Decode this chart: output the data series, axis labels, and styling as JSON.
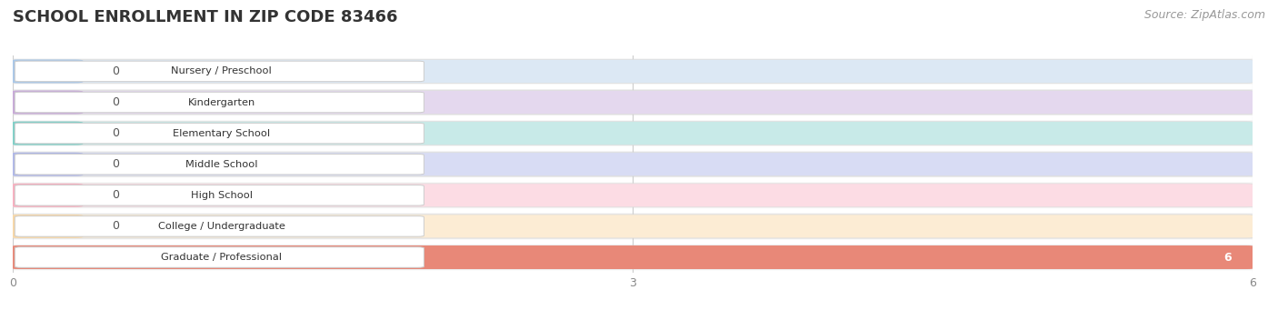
{
  "title": "SCHOOL ENROLLMENT IN ZIP CODE 83466",
  "source": "Source: ZipAtlas.com",
  "categories": [
    "Nursery / Preschool",
    "Kindergarten",
    "Elementary School",
    "Middle School",
    "High School",
    "College / Undergraduate",
    "Graduate / Professional"
  ],
  "values": [
    0,
    0,
    0,
    0,
    0,
    0,
    6
  ],
  "bar_colors": [
    "#aac8e8",
    "#c8aad8",
    "#80d0c8",
    "#b0b8e8",
    "#f8b0c0",
    "#f8d8a8",
    "#e88878"
  ],
  "bar_bg_colors": [
    "#dce8f4",
    "#e4d8ee",
    "#c8eae8",
    "#d8dcf4",
    "#fcdce4",
    "#fcecd4",
    "#e88878"
  ],
  "row_bg_colors": [
    "#f5f5f5",
    "#ebebeb"
  ],
  "xlim": [
    0,
    6
  ],
  "xticks": [
    0,
    3,
    6
  ],
  "title_fontsize": 13,
  "label_fontsize": 9,
  "value_fontsize": 9,
  "source_fontsize": 9
}
